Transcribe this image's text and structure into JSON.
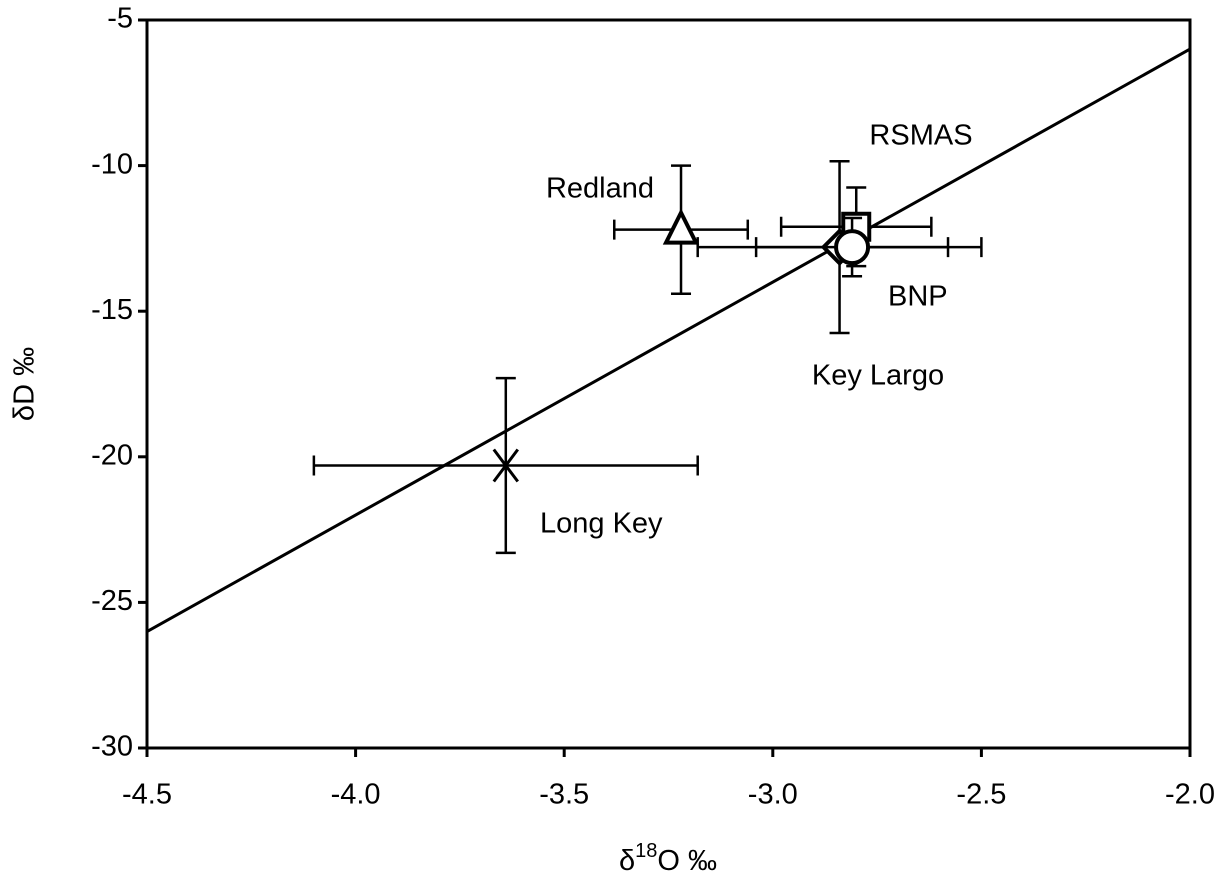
{
  "chart_data": {
    "type": "scatter",
    "xlabel": [
      "δ",
      "18",
      "O ‰"
    ],
    "ylabel": "δD ‰",
    "xlim": [
      -4.5,
      -2.0
    ],
    "ylim": [
      -30,
      -5
    ],
    "xticks": [
      {
        "value": -4.5,
        "label": "-4.5"
      },
      {
        "value": -4.0,
        "label": "-4.0"
      },
      -3.5,
      {
        "value": -3.0,
        "label": "-3.0"
      },
      -2.5,
      {
        "value": -2.0,
        "label": "-2.0"
      }
    ],
    "yticks": [
      -30,
      -25,
      -20,
      -15,
      -10,
      -5
    ],
    "line": {
      "x": [
        -4.5,
        -2.0
      ],
      "y": [
        -26,
        -6
      ],
      "color": "#000000"
    },
    "series": [
      {
        "name": "Long Key",
        "marker": "x",
        "color": "#000000",
        "x": -3.64,
        "y": -20.3,
        "xerr": 0.46,
        "yerr": 3.0
      },
      {
        "name": "Redland",
        "marker": "triangle",
        "color": "#000000",
        "x": -3.22,
        "y": -12.2,
        "xerr": 0.16,
        "yerr": 2.2
      },
      {
        "name": "Key Largo",
        "marker": "diamond",
        "color": "#000000",
        "x": -2.84,
        "y": -12.8,
        "xerr": 0.34,
        "yerr": 2.95
      },
      {
        "name": "RSMAS",
        "marker": "square",
        "color": "#000000",
        "x": -2.8,
        "y": -12.1,
        "xerr": 0.18,
        "yerr": 1.35
      },
      {
        "name": "BNP",
        "marker": "circle",
        "color": "#000000",
        "x": -2.81,
        "y": -12.8,
        "xerr": 0.23,
        "yerr": 1.0
      }
    ]
  }
}
